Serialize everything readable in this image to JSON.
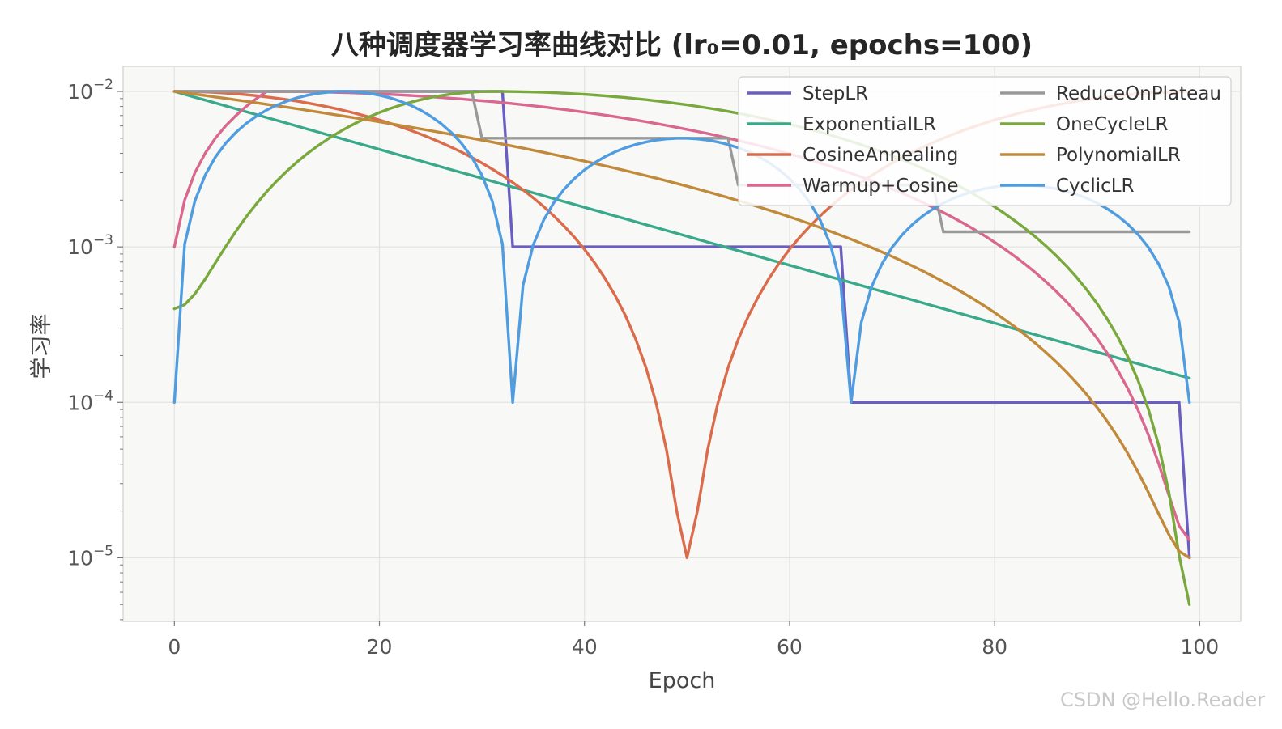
{
  "chart_data": {
    "type": "line",
    "title": "八种调度器学习率曲线对比 (lr₀=0.01, epochs=100)",
    "xlabel": "Epoch",
    "ylabel": "学习率",
    "xlim": [
      -5,
      104
    ],
    "ylim": [
      3.9e-06,
      0.0145
    ],
    "yscale": "log",
    "xticks": [
      0,
      20,
      40,
      60,
      80,
      100
    ],
    "xtick_labels": [
      "0",
      "20",
      "40",
      "60",
      "80",
      "100"
    ],
    "yticks": [
      0.01,
      0.001,
      0.0001,
      1e-05
    ],
    "ytick_labels": [
      {
        "base": "10",
        "exp": "−2"
      },
      {
        "base": "10",
        "exp": "−3"
      },
      {
        "base": "10",
        "exp": "−4"
      },
      {
        "base": "10",
        "exp": "−5"
      }
    ],
    "grid": true,
    "legend_position": "top-right",
    "legend_columns": 2,
    "series": [
      {
        "name": "StepLR",
        "color": "#6a5fc1"
      },
      {
        "name": "ExponentialLR",
        "color": "#3aa98b"
      },
      {
        "name": "CosineAnnealing",
        "color": "#da6c4b"
      },
      {
        "name": "Warmup+Cosine",
        "color": "#d9678f"
      },
      {
        "name": "ReduceOnPlateau",
        "color": "#999999"
      },
      {
        "name": "OneCycleLR",
        "color": "#79a83c"
      },
      {
        "name": "PolynomialLR",
        "color": "#c18a3a"
      },
      {
        "name": "CyclicLR",
        "color": "#4f9ce0"
      }
    ]
  },
  "watermark": "CSDN @Hello.Reader"
}
